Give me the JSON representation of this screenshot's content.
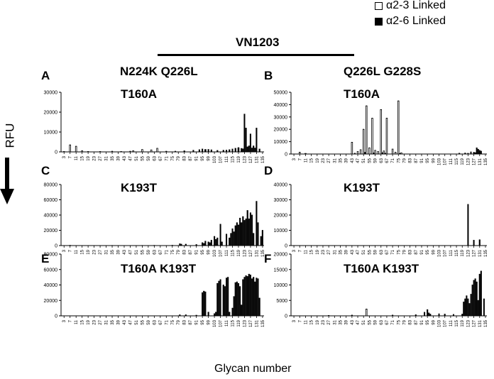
{
  "legend": {
    "items": [
      {
        "label": "α2-3 Linked",
        "fill": "#ffffff",
        "stroke": "#000000"
      },
      {
        "label": "α2-6 Linked",
        "fill": "#000000",
        "stroke": "#000000"
      }
    ]
  },
  "header": {
    "strain": "VN1203",
    "left_column": "N224K Q226L",
    "right_column": "Q226L G228S"
  },
  "axes": {
    "ylabel": "RFU",
    "xlabel": "Glycan number"
  },
  "colors": {
    "a23_fill": "#ffffff",
    "a26_fill": "#000000",
    "stroke": "#000000"
  },
  "x_ticks": [
    "3",
    "7",
    "11",
    "15",
    "19",
    "23",
    "27",
    "31",
    "35",
    "39",
    "43",
    "47",
    "51",
    "55",
    "59",
    "63",
    "67",
    "71",
    "75",
    "79",
    "83",
    "87",
    "91",
    "95",
    "99",
    "103",
    "107",
    "111",
    "115",
    "119",
    "123",
    "127",
    "131",
    "135"
  ],
  "chart_data": [
    {
      "type": "bar",
      "panel": "A",
      "title": "T160A",
      "ylim": [
        0,
        30000
      ],
      "yticks": [
        "0",
        "10000",
        "20000",
        "30000"
      ],
      "series": [
        {
          "name": "α2-3 Linked",
          "values": [
            [
              7,
              3500
            ],
            [
              11,
              2800
            ],
            [
              15,
              600
            ],
            [
              49,
              600
            ],
            [
              55,
              1200
            ],
            [
              61,
              1000
            ],
            [
              65,
              1800
            ],
            [
              97,
              1200
            ],
            [
              119,
              2000
            ]
          ]
        },
        {
          "name": "α2-6 Linked",
          "values": [
            [
              3,
              300
            ],
            [
              19,
              300
            ],
            [
              27,
              300
            ],
            [
              35,
              400
            ],
            [
              41,
              300
            ],
            [
              47,
              400
            ],
            [
              71,
              400
            ],
            [
              77,
              400
            ],
            [
              83,
              600
            ],
            [
              89,
              900
            ],
            [
              93,
              1200
            ],
            [
              95,
              1500
            ],
            [
              97,
              1000
            ],
            [
              99,
              1300
            ],
            [
              101,
              1100
            ],
            [
              105,
              800
            ],
            [
              109,
              900
            ],
            [
              111,
              1000
            ],
            [
              113,
              1200
            ],
            [
              115,
              1500
            ],
            [
              117,
              1900
            ],
            [
              119,
              2200
            ],
            [
              121,
              1800
            ],
            [
              122,
              1600
            ],
            [
              123,
              19000
            ],
            [
              124,
              12000
            ],
            [
              125,
              2500
            ],
            [
              126,
              3000
            ],
            [
              127,
              9000
            ],
            [
              128,
              2000
            ],
            [
              129,
              3000
            ],
            [
              130,
              2000
            ],
            [
              131,
              12000
            ],
            [
              133,
              1500
            ]
          ]
        }
      ]
    },
    {
      "type": "bar",
      "panel": "B",
      "title": "T160A",
      "ylim": [
        0,
        50000
      ],
      "yticks": [
        "0",
        "10000",
        "20000",
        "30000",
        "40000",
        "50000"
      ],
      "series": [
        {
          "name": "α2-3 Linked",
          "values": [
            [
              7,
              1500
            ],
            [
              11,
              500
            ],
            [
              43,
              9500
            ],
            [
              47,
              2000
            ],
            [
              49,
              3500
            ],
            [
              51,
              20000
            ],
            [
              53,
              39000
            ],
            [
              55,
              5000
            ],
            [
              57,
              29000
            ],
            [
              59,
              3000
            ],
            [
              61,
              2000
            ],
            [
              63,
              36000
            ],
            [
              65,
              2500
            ],
            [
              67,
              29000
            ],
            [
              71,
              4000
            ],
            [
              73,
              1500
            ],
            [
              75,
              43000
            ],
            [
              77,
              1000
            ]
          ]
        },
        {
          "name": "α2-6 Linked",
          "values": [
            [
              45,
              800
            ],
            [
              52,
              1500
            ],
            [
              58,
              1000
            ],
            [
              64,
              1200
            ],
            [
              66,
              800
            ],
            [
              76,
              600
            ],
            [
              117,
              800
            ],
            [
              121,
              900
            ],
            [
              123,
              700
            ],
            [
              125,
              1800
            ],
            [
              127,
              1500
            ],
            [
              128,
              1200
            ],
            [
              129,
              5000
            ],
            [
              130,
              4000
            ],
            [
              131,
              3000
            ],
            [
              132,
              2500
            ]
          ]
        }
      ]
    },
    {
      "type": "bar",
      "panel": "C",
      "title": "K193T",
      "ylim": [
        0,
        80000
      ],
      "yticks": [
        "0",
        "20000",
        "40000",
        "60000",
        "80000"
      ],
      "series": [
        {
          "name": "α2-3 Linked",
          "values": [
            [
              7,
              300
            ],
            [
              97,
              800
            ],
            [
              103,
              800
            ],
            [
              105,
              1000
            ]
          ]
        },
        {
          "name": "α2-6 Linked",
          "values": [
            [
              15,
              300
            ],
            [
              27,
              300
            ],
            [
              35,
              400
            ],
            [
              43,
              300
            ],
            [
              55,
              400
            ],
            [
              63,
              500
            ],
            [
              75,
              600
            ],
            [
              80,
              2500
            ],
            [
              81,
              2000
            ],
            [
              84,
              2000
            ],
            [
              91,
              1500
            ],
            [
              95,
              4000
            ],
            [
              96,
              3000
            ],
            [
              97,
              6000
            ],
            [
              99,
              5000
            ],
            [
              100,
              4000
            ],
            [
              101,
              7000
            ],
            [
              103,
              12000
            ],
            [
              104,
              8000
            ],
            [
              105,
              10000
            ],
            [
              107,
              28000
            ],
            [
              108,
              5000
            ],
            [
              111,
              15000
            ],
            [
              113,
              10000
            ],
            [
              114,
              16000
            ],
            [
              115,
              22000
            ],
            [
              116,
              18000
            ],
            [
              117,
              26000
            ],
            [
              118,
              30000
            ],
            [
              119,
              27000
            ],
            [
              120,
              36000
            ],
            [
              121,
              30000
            ],
            [
              122,
              38000
            ],
            [
              123,
              33000
            ],
            [
              124,
              35000
            ],
            [
              125,
              46000
            ],
            [
              126,
              35000
            ],
            [
              127,
              43000
            ],
            [
              128,
              40000
            ],
            [
              129,
              16000
            ],
            [
              131,
              58000
            ],
            [
              132,
              30000
            ],
            [
              134,
              12000
            ],
            [
              135,
              20000
            ]
          ]
        }
      ]
    },
    {
      "type": "bar",
      "panel": "D",
      "title": "K193T",
      "ylim": [
        0,
        40000
      ],
      "yticks": [
        "0",
        "10000",
        "20000",
        "30000",
        "40000"
      ],
      "series": [
        {
          "name": "α2-3 Linked",
          "values": []
        },
        {
          "name": "α2-6 Linked",
          "values": [
            [
              123,
              27000
            ],
            [
              127,
              3500
            ],
            [
              131,
              3800
            ]
          ]
        }
      ]
    },
    {
      "type": "bar",
      "panel": "E",
      "title": "T160A K193T",
      "ylim": [
        0,
        80000
      ],
      "yticks": [
        "0",
        "20000",
        "40000",
        "60000",
        "80000"
      ],
      "series": [
        {
          "name": "α2-3 Linked",
          "values": []
        },
        {
          "name": "α2-6 Linked",
          "values": [
            [
              80,
              1500
            ],
            [
              84,
              1500
            ],
            [
              91,
              1000
            ],
            [
              95,
              30000
            ],
            [
              96,
              32000
            ],
            [
              97,
              31000
            ],
            [
              99,
              5000
            ],
            [
              103,
              3000
            ],
            [
              104,
              5000
            ],
            [
              105,
              42000
            ],
            [
              106,
              45000
            ],
            [
              107,
              47000
            ],
            [
              109,
              40000
            ],
            [
              110,
              38000
            ],
            [
              111,
              49000
            ],
            [
              112,
              50000
            ],
            [
              113,
              5000
            ],
            [
              115,
              10000
            ],
            [
              116,
              25000
            ],
            [
              117,
              43000
            ],
            [
              118,
              44000
            ],
            [
              119,
              42000
            ],
            [
              120,
              38000
            ],
            [
              121,
              14000
            ],
            [
              122,
              47000
            ],
            [
              123,
              50000
            ],
            [
              124,
              52000
            ],
            [
              125,
              51000
            ],
            [
              126,
              54000
            ],
            [
              127,
              53000
            ],
            [
              128,
              48000
            ],
            [
              129,
              50000
            ],
            [
              130,
              44000
            ],
            [
              131,
              49000
            ],
            [
              132,
              48000
            ],
            [
              133,
              23000
            ]
          ]
        }
      ]
    },
    {
      "type": "bar",
      "panel": "F",
      "title": "T160A K193T",
      "ylim": [
        0,
        20000
      ],
      "yticks": [
        "0",
        "5000",
        "10000",
        "15000",
        "20000"
      ],
      "series": [
        {
          "name": "α2-3 Linked",
          "values": [
            [
              53,
              2200
            ]
          ]
        },
        {
          "name": "α2-6 Linked",
          "values": [
            [
              27,
              200
            ],
            [
              43,
              300
            ],
            [
              71,
              300
            ],
            [
              87,
              400
            ],
            [
              93,
              1200
            ],
            [
              95,
              2000
            ],
            [
              96,
              1000
            ],
            [
              97,
              600
            ],
            [
              103,
              700
            ],
            [
              107,
              600
            ],
            [
              113,
              500
            ],
            [
              119,
              600
            ],
            [
              120,
              4500
            ],
            [
              121,
              5500
            ],
            [
              122,
              6500
            ],
            [
              123,
              5500
            ],
            [
              124,
              4000
            ],
            [
              125,
              7000
            ],
            [
              126,
              10000
            ],
            [
              127,
              11500
            ],
            [
              128,
              12000
            ],
            [
              129,
              11000
            ],
            [
              130,
              5000
            ],
            [
              131,
              13500
            ],
            [
              132,
              14500
            ],
            [
              134,
              5500
            ]
          ]
        }
      ]
    }
  ]
}
